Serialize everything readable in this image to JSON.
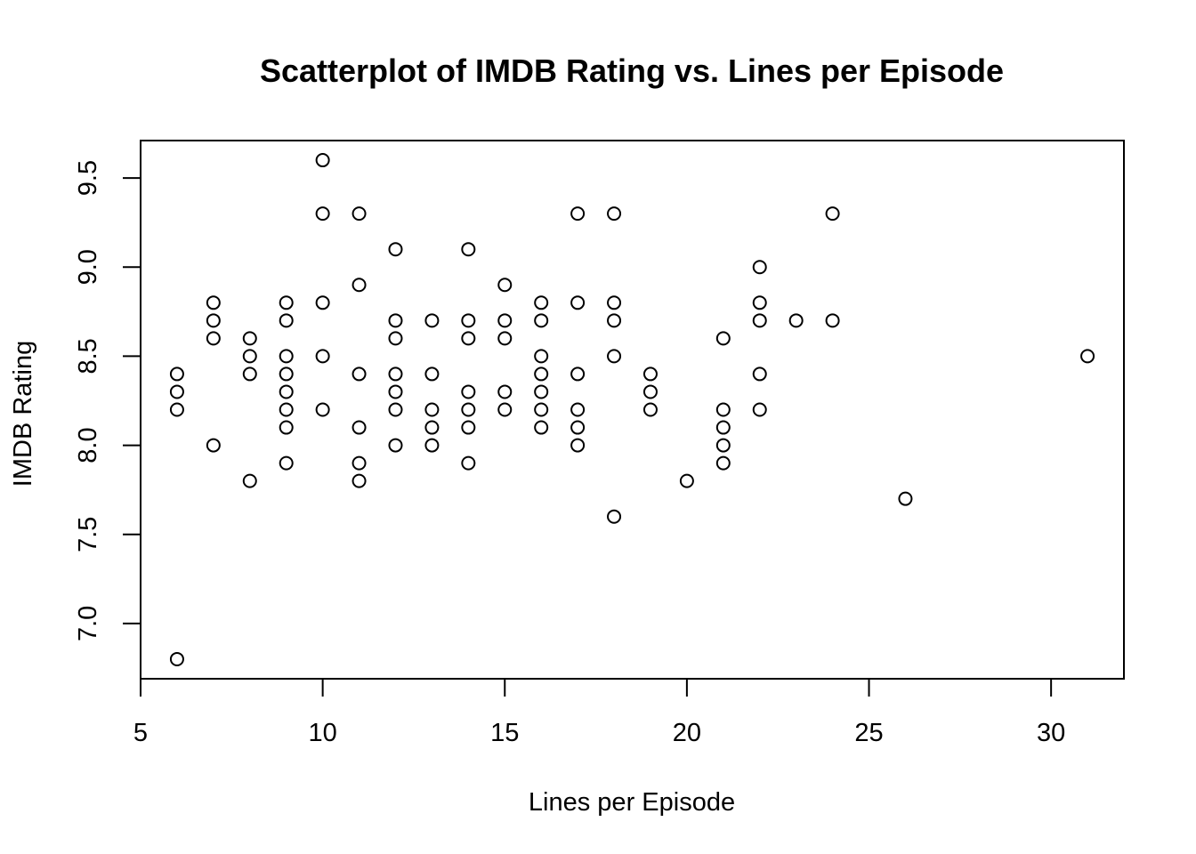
{
  "chart_data": {
    "type": "scatter",
    "title": "Scatterplot of IMDB Rating vs. Lines per Episode",
    "xlabel": "Lines per Episode",
    "ylabel": "IMDB Rating",
    "xlim": [
      5,
      32
    ],
    "ylim": [
      6.69,
      9.71
    ],
    "xticks": [
      5,
      10,
      15,
      20,
      25,
      30
    ],
    "yticks": [
      7.0,
      7.5,
      8.0,
      8.5,
      9.0,
      9.5
    ],
    "xtick_labels": [
      "5",
      "10",
      "15",
      "20",
      "25",
      "30"
    ],
    "ytick_labels": [
      "7.0",
      "7.5",
      "8.0",
      "8.5",
      "9.0",
      "9.5"
    ],
    "marker": "open-circle",
    "color": "#000000",
    "grid": false,
    "points": [
      [
        6,
        8.4
      ],
      [
        6,
        8.3
      ],
      [
        6,
        8.2
      ],
      [
        6,
        6.8
      ],
      [
        7,
        8.8
      ],
      [
        7,
        8.7
      ],
      [
        7,
        8.6
      ],
      [
        7,
        8.0
      ],
      [
        8,
        8.6
      ],
      [
        8,
        8.5
      ],
      [
        8,
        8.4
      ],
      [
        8,
        7.8
      ],
      [
        9,
        8.8
      ],
      [
        9,
        8.7
      ],
      [
        9,
        8.5
      ],
      [
        9,
        8.4
      ],
      [
        9,
        8.3
      ],
      [
        9,
        8.2
      ],
      [
        9,
        8.1
      ],
      [
        9,
        7.9
      ],
      [
        10,
        9.6
      ],
      [
        10,
        9.3
      ],
      [
        10,
        8.8
      ],
      [
        10,
        8.5
      ],
      [
        10,
        8.2
      ],
      [
        11,
        9.3
      ],
      [
        11,
        8.9
      ],
      [
        11,
        8.4
      ],
      [
        11,
        8.1
      ],
      [
        11,
        7.9
      ],
      [
        11,
        7.8
      ],
      [
        12,
        9.1
      ],
      [
        12,
        8.7
      ],
      [
        12,
        8.6
      ],
      [
        12,
        8.4
      ],
      [
        12,
        8.3
      ],
      [
        12,
        8.2
      ],
      [
        12,
        8.0
      ],
      [
        13,
        8.7
      ],
      [
        13,
        8.4
      ],
      [
        13,
        8.2
      ],
      [
        13,
        8.1
      ],
      [
        13,
        8.0
      ],
      [
        14,
        9.1
      ],
      [
        14,
        8.7
      ],
      [
        14,
        8.6
      ],
      [
        14,
        8.3
      ],
      [
        14,
        8.2
      ],
      [
        14,
        8.1
      ],
      [
        14,
        7.9
      ],
      [
        15,
        8.9
      ],
      [
        15,
        8.7
      ],
      [
        15,
        8.6
      ],
      [
        15,
        8.3
      ],
      [
        15,
        8.2
      ],
      [
        16,
        8.8
      ],
      [
        16,
        8.7
      ],
      [
        16,
        8.5
      ],
      [
        16,
        8.4
      ],
      [
        16,
        8.3
      ],
      [
        16,
        8.2
      ],
      [
        16,
        8.1
      ],
      [
        17,
        9.3
      ],
      [
        17,
        8.8
      ],
      [
        17,
        8.4
      ],
      [
        17,
        8.2
      ],
      [
        17,
        8.1
      ],
      [
        17,
        8.0
      ],
      [
        18,
        9.3
      ],
      [
        18,
        8.8
      ],
      [
        18,
        8.7
      ],
      [
        18,
        8.5
      ],
      [
        18,
        7.6
      ],
      [
        19,
        8.4
      ],
      [
        19,
        8.3
      ],
      [
        19,
        8.2
      ],
      [
        20,
        7.8
      ],
      [
        21,
        8.6
      ],
      [
        21,
        8.2
      ],
      [
        21,
        8.1
      ],
      [
        21,
        8.0
      ],
      [
        21,
        7.9
      ],
      [
        22,
        9.0
      ],
      [
        22,
        8.8
      ],
      [
        22,
        8.7
      ],
      [
        22,
        8.4
      ],
      [
        22,
        8.2
      ],
      [
        23,
        8.7
      ],
      [
        24,
        9.3
      ],
      [
        24,
        8.7
      ],
      [
        26,
        7.7
      ],
      [
        31,
        8.5
      ]
    ]
  }
}
